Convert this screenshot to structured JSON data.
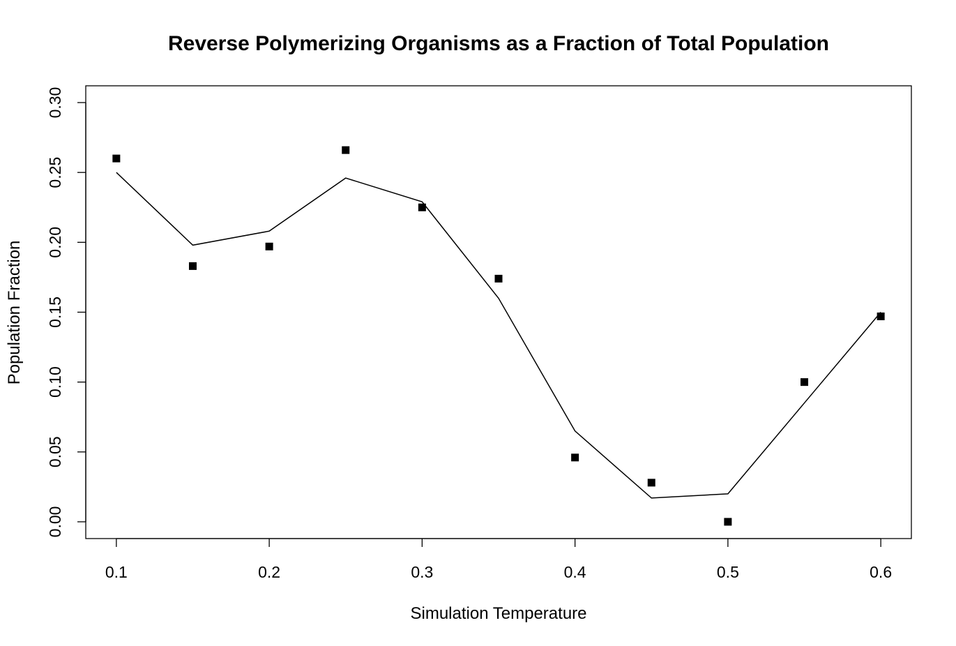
{
  "chart_data": {
    "type": "scatter",
    "title": "Reverse Polymerizing Organisms as a Fraction of Total Population",
    "xlabel": "Simulation Temperature",
    "ylabel": "Population Fraction",
    "x_ticks": [
      "0.1",
      "0.2",
      "0.3",
      "0.4",
      "0.5",
      "0.6"
    ],
    "y_ticks": [
      "0.00",
      "0.05",
      "0.10",
      "0.15",
      "0.20",
      "0.25",
      "0.30"
    ],
    "xlim": [
      0.08,
      0.62
    ],
    "ylim": [
      -0.012,
      0.312
    ],
    "grid": false,
    "series": [
      {
        "kind": "points",
        "marker": "filled-square",
        "color": "#000000",
        "x": [
          0.1,
          0.15,
          0.2,
          0.25,
          0.3,
          0.35,
          0.4,
          0.45,
          0.5,
          0.55,
          0.6
        ],
        "y": [
          0.26,
          0.183,
          0.197,
          0.266,
          0.225,
          0.174,
          0.046,
          0.028,
          0.0,
          0.1,
          0.147
        ]
      },
      {
        "kind": "line",
        "color": "#000000",
        "x": [
          0.1,
          0.15,
          0.2,
          0.25,
          0.3,
          0.35,
          0.4,
          0.45,
          0.5,
          0.55,
          0.6
        ],
        "y": [
          0.25,
          0.198,
          0.208,
          0.246,
          0.229,
          0.16,
          0.065,
          0.017,
          0.02,
          0.085,
          0.15
        ]
      }
    ]
  }
}
